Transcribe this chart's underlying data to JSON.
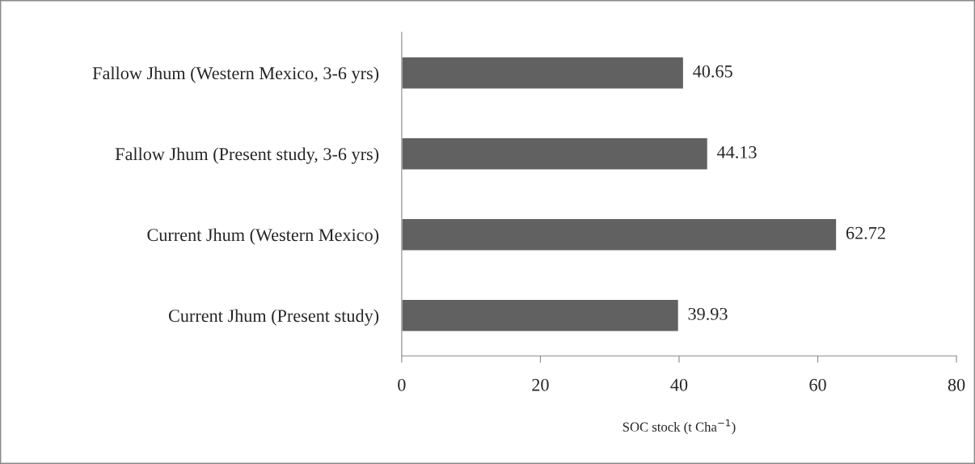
{
  "chart_data": {
    "type": "bar",
    "orientation": "horizontal",
    "categories": [
      "Fallow Jhum (Western Mexico, 3-6 yrs)",
      "Fallow Jhum (Present study, 3-6 yrs)",
      "Current Jhum (Western Mexico)",
      "Current Jhum (Present study)"
    ],
    "values": [
      40.65,
      44.13,
      62.72,
      39.93
    ],
    "color": "#616161",
    "xlabel": "SOC stock (t Cha$^{−1}$)",
    "xlim": [
      0,
      80
    ],
    "xticks": [
      0,
      20,
      40,
      60,
      80
    ],
    "data_labels": true,
    "grid": false,
    "legend": false
  }
}
